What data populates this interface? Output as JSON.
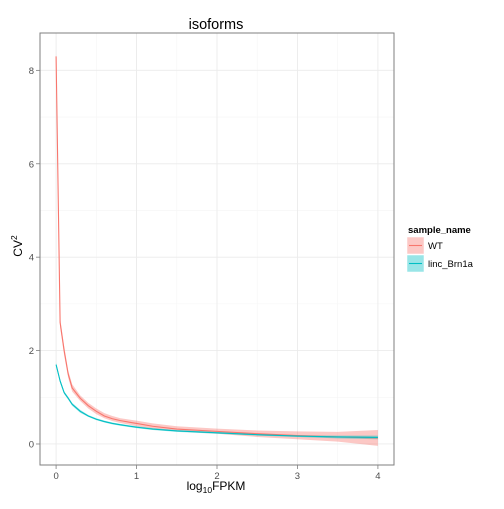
{
  "chart_data": {
    "type": "line",
    "title": "isoforms",
    "xlabel": {
      "base": "log",
      "subscript": "10",
      "rest": "FPKM"
    },
    "ylabel": {
      "base": "CV",
      "superscript": "2"
    },
    "xlim": [
      -0.2,
      4.2
    ],
    "ylim": [
      -0.45,
      8.8
    ],
    "x_ticks": [
      0,
      1,
      2,
      3,
      4
    ],
    "y_ticks": [
      0,
      2,
      4,
      6,
      8
    ],
    "grid": true,
    "legend_title": "sample_name",
    "legend_position": "right",
    "series": [
      {
        "name": "WT",
        "color": "#F8766D",
        "x": [
          0.0,
          0.05,
          0.1,
          0.15,
          0.2,
          0.3,
          0.4,
          0.5,
          0.6,
          0.7,
          0.8,
          1.0,
          1.2,
          1.5,
          2.0,
          2.5,
          3.0,
          3.5,
          4.0
        ],
        "y": [
          8.3,
          2.6,
          2.0,
          1.5,
          1.2,
          0.98,
          0.82,
          0.7,
          0.6,
          0.54,
          0.5,
          0.44,
          0.38,
          0.32,
          0.27,
          0.22,
          0.18,
          0.15,
          0.13
        ],
        "lower": [
          8.2,
          2.5,
          1.9,
          1.42,
          1.12,
          0.92,
          0.76,
          0.64,
          0.55,
          0.49,
          0.45,
          0.38,
          0.33,
          0.27,
          0.22,
          0.15,
          0.1,
          0.05,
          -0.04
        ],
        "upper": [
          8.4,
          2.7,
          2.1,
          1.58,
          1.28,
          1.04,
          0.88,
          0.76,
          0.66,
          0.6,
          0.55,
          0.5,
          0.44,
          0.38,
          0.33,
          0.29,
          0.27,
          0.26,
          0.3
        ]
      },
      {
        "name": "linc_Brn1a",
        "color": "#00BFC4",
        "x": [
          0.0,
          0.05,
          0.1,
          0.15,
          0.2,
          0.3,
          0.4,
          0.5,
          0.6,
          0.7,
          0.8,
          1.0,
          1.2,
          1.5,
          2.0,
          2.5,
          3.0,
          3.5,
          4.0
        ],
        "y": [
          1.7,
          1.35,
          1.1,
          0.98,
          0.85,
          0.7,
          0.6,
          0.53,
          0.48,
          0.44,
          0.41,
          0.36,
          0.32,
          0.28,
          0.24,
          0.2,
          0.17,
          0.15,
          0.14
        ],
        "lower": [
          1.66,
          1.31,
          1.07,
          0.95,
          0.82,
          0.67,
          0.58,
          0.51,
          0.46,
          0.42,
          0.39,
          0.34,
          0.3,
          0.26,
          0.22,
          0.18,
          0.15,
          0.12,
          0.1
        ],
        "upper": [
          1.74,
          1.39,
          1.13,
          1.01,
          0.88,
          0.73,
          0.62,
          0.55,
          0.5,
          0.46,
          0.43,
          0.38,
          0.34,
          0.3,
          0.26,
          0.22,
          0.19,
          0.18,
          0.18
        ]
      }
    ]
  },
  "colors": {
    "panel_border": "#7f7f7f",
    "grid_major": "#ebebeb",
    "grid_minor": "#f5f5f5",
    "text": "#000000",
    "tick_text": "#4d4d4d"
  }
}
